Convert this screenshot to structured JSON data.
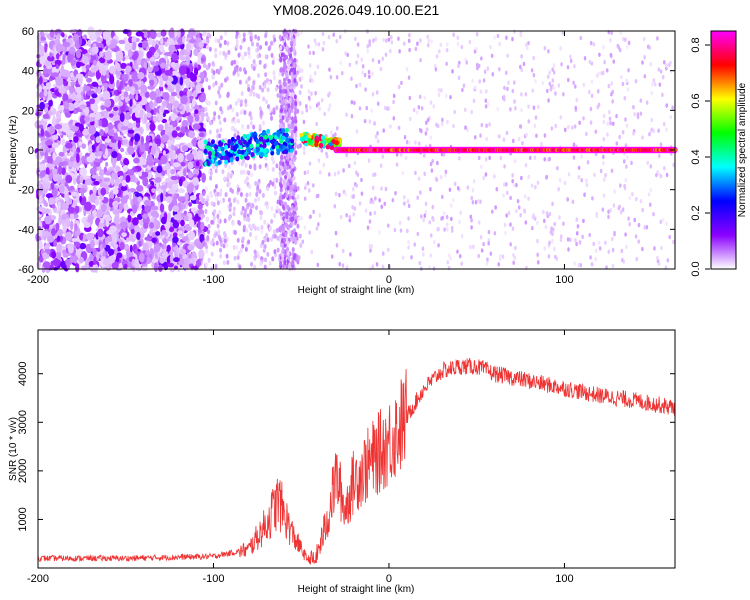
{
  "title": "YM08.2026.049.10.00.E21",
  "chart_data": [
    {
      "type": "heatmap",
      "xlabel": "Height of straight line (km)",
      "ylabel": "Frequency (Hz)",
      "xlim": [
        -200,
        163
      ],
      "ylim": [
        -60,
        60
      ],
      "x_ticks": [
        -200,
        -100,
        0,
        100
      ],
      "y_ticks": [
        -60,
        -40,
        -20,
        0,
        20,
        40,
        60
      ],
      "colorbar": {
        "label": "Normalized spectral amplitude",
        "range": [
          0,
          0.85
        ],
        "ticks": [
          0,
          0.2,
          0.4,
          0.6,
          0.8
        ],
        "colors": [
          "#ffffff",
          "#8a00ff",
          "#0000ff",
          "#00ffff",
          "#00ff00",
          "#ffff00",
          "#ff0000",
          "#ff00ff"
        ]
      },
      "features": [
        {
          "region": "x -200 to -105",
          "frequency": "broadband -60 to 60 Hz",
          "amplitude": "0.05-0.15, dense purple noise"
        },
        {
          "region": "x -60 to -55",
          "frequency": "broadband",
          "amplitude": "0.05, vertical stripe"
        },
        {
          "region": "x -105 to -60",
          "frequency": "cluster around 0-10 Hz",
          "amplitude": "0.2-0.4"
        },
        {
          "region": "x -50 to -30",
          "frequency": "around 5 Hz",
          "amplitude": "0.3-0.8"
        },
        {
          "region": "x -30 to 163",
          "frequency": "line at ~0 Hz",
          "amplitude": "0.6-0.85"
        }
      ]
    },
    {
      "type": "line",
      "xlabel": "Height of straight line (km)",
      "ylabel": "SNR (10 * v/v)",
      "xlim": [
        -200,
        163
      ],
      "ylim": [
        0,
        4900
      ],
      "x_ticks": [
        -200,
        -100,
        0,
        100
      ],
      "y_ticks": [
        1000,
        2000,
        3000,
        4000
      ],
      "color": "#ee3333",
      "series": [
        {
          "name": "SNR",
          "x": [
            -200,
            -150,
            -100,
            -80,
            -70,
            -63,
            -55,
            -47,
            -42,
            -35,
            -30,
            -25,
            -20,
            -10,
            0,
            10,
            20,
            30,
            40,
            50,
            60,
            80,
            100,
            120,
            140,
            163
          ],
          "values": [
            200,
            200,
            240,
            380,
            900,
            1400,
            700,
            200,
            150,
            1000,
            1900,
            1200,
            1800,
            2200,
            2600,
            3100,
            3700,
            4050,
            4150,
            4150,
            4000,
            3850,
            3700,
            3550,
            3450,
            3300
          ]
        }
      ]
    }
  ]
}
